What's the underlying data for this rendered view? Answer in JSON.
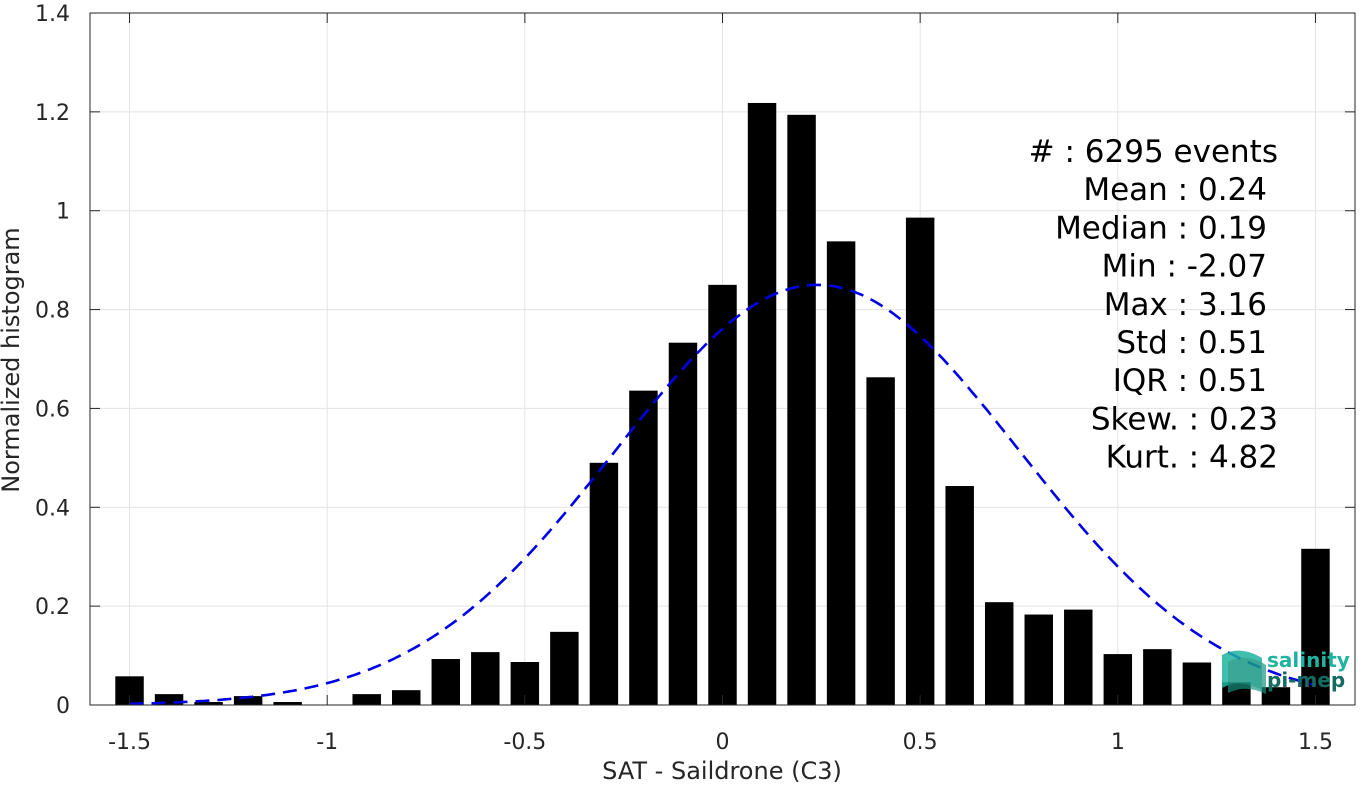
{
  "chart_data": {
    "type": "bar",
    "xlabel": "SAT - Saildrone (C3)",
    "ylabel": "Normalized histogram",
    "xlim": [
      -1.5,
      1.5
    ],
    "ylim": [
      0,
      1.4
    ],
    "grid": true,
    "xticks": [
      -1.5,
      -1,
      -0.5,
      0,
      0.5,
      1,
      1.5
    ],
    "xtick_labels": [
      "-1.5",
      "-1",
      "-0.5",
      "0",
      "0.5",
      "1",
      "1.5"
    ],
    "yticks": [
      0,
      0.2,
      0.4,
      0.6,
      0.8,
      1,
      1.2,
      1.4
    ],
    "ytick_labels": [
      "0",
      "0.2",
      "0.4",
      "0.6",
      "0.8",
      "1",
      "1.2",
      "1.4"
    ],
    "bar_color": "#000000",
    "bins": [
      -1.5,
      -1.4,
      -1.3,
      -1.2,
      -1.1,
      -1.0,
      -0.9,
      -0.8,
      -0.7,
      -0.6,
      -0.5,
      -0.4,
      -0.3,
      -0.2,
      -0.1,
      0.0,
      0.1,
      0.2,
      0.3,
      0.4,
      0.5,
      0.6,
      0.7,
      0.8,
      0.9,
      1.0,
      1.1,
      1.2,
      1.3,
      1.4,
      1.5
    ],
    "values": [
      0.058,
      0.022,
      0.006,
      0.018,
      0.006,
      0.0,
      0.022,
      0.03,
      0.093,
      0.107,
      0.087,
      0.148,
      0.49,
      0.636,
      0.733,
      0.85,
      1.218,
      1.194,
      0.938,
      0.663,
      0.986,
      0.443,
      0.208,
      0.183,
      0.193,
      0.103,
      0.113,
      0.086,
      0.046,
      0.036,
      0.316
    ],
    "fit_curve": {
      "type": "normal",
      "mean": 0.24,
      "std": 0.51,
      "peak": 0.85,
      "color": "#0000e6",
      "dash": "dashed"
    },
    "annotations": [
      "#  : 6295 events",
      "Mean : 0.24",
      "Median : 0.19",
      "Min : -2.07",
      "Max : 3.16",
      "Std : 0.51",
      "IQR : 0.51",
      "Skew. : 0.23",
      "Kurt. : 4.82"
    ]
  },
  "logo": {
    "line1": "salinity",
    "line2": "pi-mep",
    "color_light": "#1fb3a0",
    "color_dark": "#156b62"
  }
}
